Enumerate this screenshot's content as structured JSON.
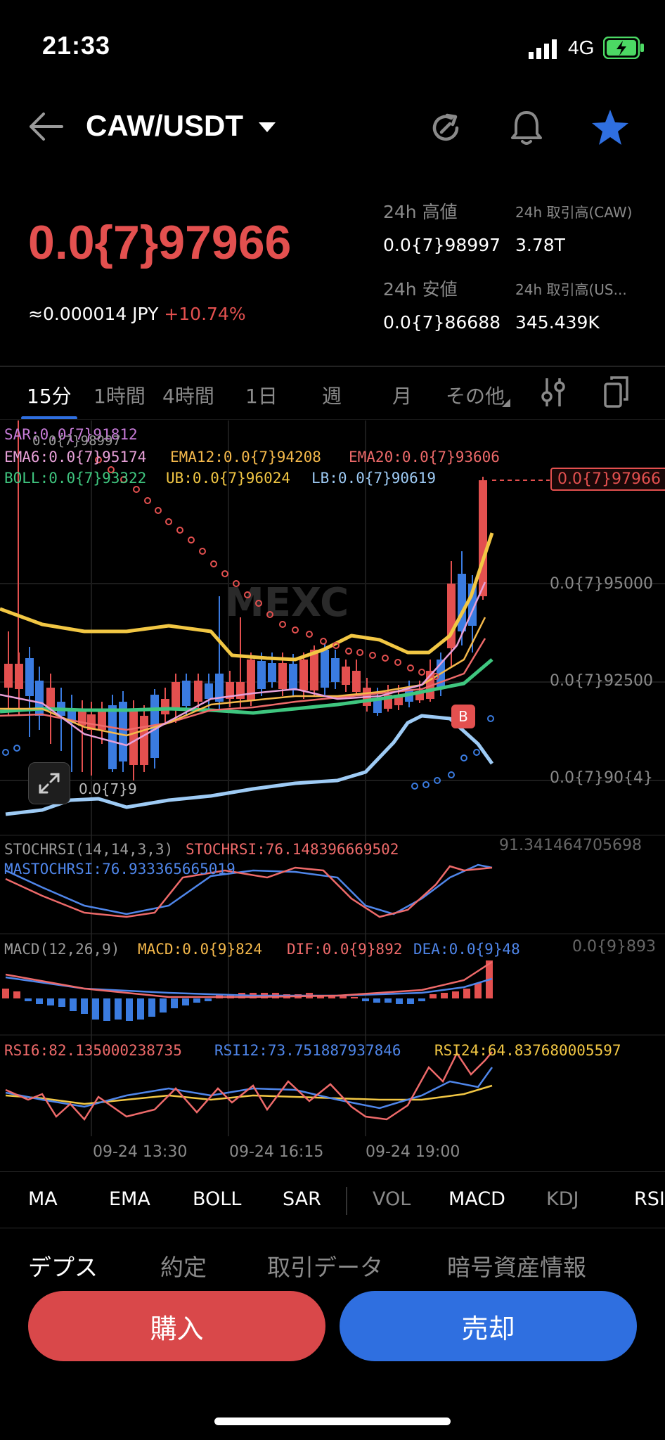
{
  "status_bar": {
    "time": "21:33",
    "network": "4G"
  },
  "header": {
    "pair": "CAW/USDT"
  },
  "price": {
    "last": "0.0{7}97966",
    "fiat": "≈0.000014 JPY",
    "change": "+10.74%"
  },
  "stats": {
    "high_label": "24h 高値",
    "high_value": "0.0{7}98997",
    "vol_coin_label": "24h 取引高(CAW)",
    "vol_coin_value": "3.78T",
    "low_label": "24h 安値",
    "low_value": "0.0{7}86688",
    "vol_quote_label": "24h 取引高(US...",
    "vol_quote_value": "345.439K"
  },
  "timeframes": [
    "15分",
    "1時間",
    "4時間",
    "1日",
    "週",
    "月",
    "その他"
  ],
  "chart": {
    "sar": "SAR:0.0{7}91812",
    "high_mark": "0.0{7}98997",
    "ema6": "EMA6:0.0{7}95174",
    "ema12": "EMA12:0.0{7}94208",
    "ema20": "EMA20:0.0{7}93606",
    "boll": "BOLL:0.0{7}93322",
    "ub": "UB:0.0{7}96024",
    "lb": "LB:0.0{7}90619",
    "last_price_tag": "0.0{7}97966",
    "y_labels": [
      "0.0{7}95000",
      "0.0{7}92500",
      "0.0{7}90{4}"
    ],
    "low_mark": "0.0{7}9",
    "buy_marker": "B",
    "watermark": "MEXC",
    "stochrsi_title": "STOCHRSI(14,14,3,3)",
    "stochrsi_value": "STOCHRSI:76.148396669502",
    "mastochrsi_value": "MASTOCHRSI:76.933365665019",
    "stochrsi_axis": "91.341464705698",
    "macd_title": "MACD(12,26,9)",
    "macd_value": "MACD:0.0{9}824",
    "dif_value": "DIF:0.0{9}892",
    "dea_value": "DEA:0.0{9}48",
    "macd_axis": "0.0{9}893",
    "rsi6": "RSI6:82.135000238735",
    "rsi12": "RSI12:73.751887937846",
    "rsi24": "RSI24:64.837680005597",
    "x_labels": [
      "09-24 13:30",
      "09-24 16:15",
      "09-24 19:00"
    ]
  },
  "indicator_tabs": [
    "MA",
    "EMA",
    "BOLL",
    "SAR",
    "VOL",
    "MACD",
    "KDJ",
    "RSI"
  ],
  "bottom_tabs": [
    "デプス",
    "約定",
    "取引データ",
    "暗号資産情報"
  ],
  "actions": {
    "buy": "購入",
    "sell": "売却"
  },
  "colors": {
    "up": "#e3504f",
    "down": "#3a7be0",
    "accent": "#2f6fe0",
    "sell_btn": "#2f6fe0",
    "buy_btn": "#d9484a"
  }
}
